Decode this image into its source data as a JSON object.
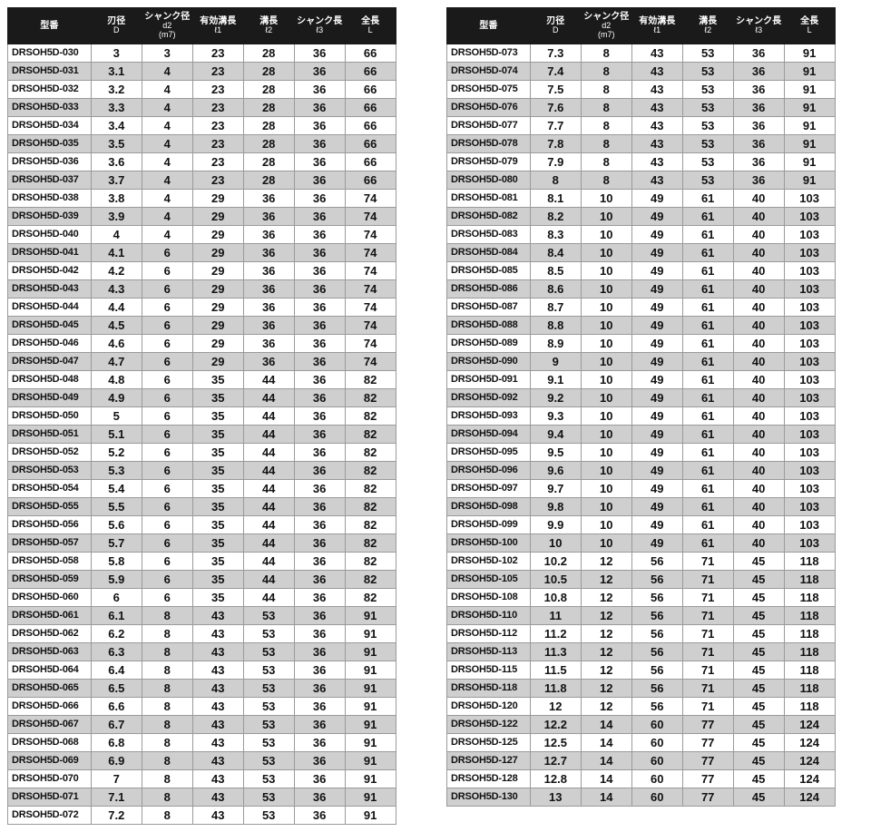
{
  "headers": {
    "model": {
      "line1": "型番",
      "line2": ""
    },
    "d": {
      "line1": "刃径",
      "line2": "D"
    },
    "d2": {
      "line1": "シャンク径",
      "line2": "d2",
      "line3": "(m7)"
    },
    "l1": {
      "line1": "有効溝長",
      "line2": "ℓ1"
    },
    "l2": {
      "line1": "溝長",
      "line2": "ℓ2"
    },
    "l3": {
      "line1": "シャンク長",
      "line2": "ℓ3"
    },
    "l": {
      "line1": "全長",
      "line2": "L"
    }
  },
  "colors": {
    "header_bg": "#1a1a1a",
    "header_fg": "#ffffff",
    "stripe_bg": "#cfcfcf",
    "border": "#9a9a9a",
    "page_bg": "#ffffff",
    "text": "#111111"
  },
  "left_rows": [
    {
      "model": "DRSOH5D-030",
      "d": "3",
      "d2": "3",
      "l1": "23",
      "l2": "28",
      "l3": "36",
      "l": "66"
    },
    {
      "model": "DRSOH5D-031",
      "d": "3.1",
      "d2": "4",
      "l1": "23",
      "l2": "28",
      "l3": "36",
      "l": "66"
    },
    {
      "model": "DRSOH5D-032",
      "d": "3.2",
      "d2": "4",
      "l1": "23",
      "l2": "28",
      "l3": "36",
      "l": "66"
    },
    {
      "model": "DRSOH5D-033",
      "d": "3.3",
      "d2": "4",
      "l1": "23",
      "l2": "28",
      "l3": "36",
      "l": "66"
    },
    {
      "model": "DRSOH5D-034",
      "d": "3.4",
      "d2": "4",
      "l1": "23",
      "l2": "28",
      "l3": "36",
      "l": "66"
    },
    {
      "model": "DRSOH5D-035",
      "d": "3.5",
      "d2": "4",
      "l1": "23",
      "l2": "28",
      "l3": "36",
      "l": "66"
    },
    {
      "model": "DRSOH5D-036",
      "d": "3.6",
      "d2": "4",
      "l1": "23",
      "l2": "28",
      "l3": "36",
      "l": "66"
    },
    {
      "model": "DRSOH5D-037",
      "d": "3.7",
      "d2": "4",
      "l1": "23",
      "l2": "28",
      "l3": "36",
      "l": "66"
    },
    {
      "model": "DRSOH5D-038",
      "d": "3.8",
      "d2": "4",
      "l1": "29",
      "l2": "36",
      "l3": "36",
      "l": "74"
    },
    {
      "model": "DRSOH5D-039",
      "d": "3.9",
      "d2": "4",
      "l1": "29",
      "l2": "36",
      "l3": "36",
      "l": "74"
    },
    {
      "model": "DRSOH5D-040",
      "d": "4",
      "d2": "4",
      "l1": "29",
      "l2": "36",
      "l3": "36",
      "l": "74"
    },
    {
      "model": "DRSOH5D-041",
      "d": "4.1",
      "d2": "6",
      "l1": "29",
      "l2": "36",
      "l3": "36",
      "l": "74"
    },
    {
      "model": "DRSOH5D-042",
      "d": "4.2",
      "d2": "6",
      "l1": "29",
      "l2": "36",
      "l3": "36",
      "l": "74"
    },
    {
      "model": "DRSOH5D-043",
      "d": "4.3",
      "d2": "6",
      "l1": "29",
      "l2": "36",
      "l3": "36",
      "l": "74"
    },
    {
      "model": "DRSOH5D-044",
      "d": "4.4",
      "d2": "6",
      "l1": "29",
      "l2": "36",
      "l3": "36",
      "l": "74"
    },
    {
      "model": "DRSOH5D-045",
      "d": "4.5",
      "d2": "6",
      "l1": "29",
      "l2": "36",
      "l3": "36",
      "l": "74"
    },
    {
      "model": "DRSOH5D-046",
      "d": "4.6",
      "d2": "6",
      "l1": "29",
      "l2": "36",
      "l3": "36",
      "l": "74"
    },
    {
      "model": "DRSOH5D-047",
      "d": "4.7",
      "d2": "6",
      "l1": "29",
      "l2": "36",
      "l3": "36",
      "l": "74"
    },
    {
      "model": "DRSOH5D-048",
      "d": "4.8",
      "d2": "6",
      "l1": "35",
      "l2": "44",
      "l3": "36",
      "l": "82"
    },
    {
      "model": "DRSOH5D-049",
      "d": "4.9",
      "d2": "6",
      "l1": "35",
      "l2": "44",
      "l3": "36",
      "l": "82"
    },
    {
      "model": "DRSOH5D-050",
      "d": "5",
      "d2": "6",
      "l1": "35",
      "l2": "44",
      "l3": "36",
      "l": "82"
    },
    {
      "model": "DRSOH5D-051",
      "d": "5.1",
      "d2": "6",
      "l1": "35",
      "l2": "44",
      "l3": "36",
      "l": "82"
    },
    {
      "model": "DRSOH5D-052",
      "d": "5.2",
      "d2": "6",
      "l1": "35",
      "l2": "44",
      "l3": "36",
      "l": "82"
    },
    {
      "model": "DRSOH5D-053",
      "d": "5.3",
      "d2": "6",
      "l1": "35",
      "l2": "44",
      "l3": "36",
      "l": "82"
    },
    {
      "model": "DRSOH5D-054",
      "d": "5.4",
      "d2": "6",
      "l1": "35",
      "l2": "44",
      "l3": "36",
      "l": "82"
    },
    {
      "model": "DRSOH5D-055",
      "d": "5.5",
      "d2": "6",
      "l1": "35",
      "l2": "44",
      "l3": "36",
      "l": "82"
    },
    {
      "model": "DRSOH5D-056",
      "d": "5.6",
      "d2": "6",
      "l1": "35",
      "l2": "44",
      "l3": "36",
      "l": "82"
    },
    {
      "model": "DRSOH5D-057",
      "d": "5.7",
      "d2": "6",
      "l1": "35",
      "l2": "44",
      "l3": "36",
      "l": "82"
    },
    {
      "model": "DRSOH5D-058",
      "d": "5.8",
      "d2": "6",
      "l1": "35",
      "l2": "44",
      "l3": "36",
      "l": "82"
    },
    {
      "model": "DRSOH5D-059",
      "d": "5.9",
      "d2": "6",
      "l1": "35",
      "l2": "44",
      "l3": "36",
      "l": "82"
    },
    {
      "model": "DRSOH5D-060",
      "d": "6",
      "d2": "6",
      "l1": "35",
      "l2": "44",
      "l3": "36",
      "l": "82"
    },
    {
      "model": "DRSOH5D-061",
      "d": "6.1",
      "d2": "8",
      "l1": "43",
      "l2": "53",
      "l3": "36",
      "l": "91"
    },
    {
      "model": "DRSOH5D-062",
      "d": "6.2",
      "d2": "8",
      "l1": "43",
      "l2": "53",
      "l3": "36",
      "l": "91"
    },
    {
      "model": "DRSOH5D-063",
      "d": "6.3",
      "d2": "8",
      "l1": "43",
      "l2": "53",
      "l3": "36",
      "l": "91"
    },
    {
      "model": "DRSOH5D-064",
      "d": "6.4",
      "d2": "8",
      "l1": "43",
      "l2": "53",
      "l3": "36",
      "l": "91"
    },
    {
      "model": "DRSOH5D-065",
      "d": "6.5",
      "d2": "8",
      "l1": "43",
      "l2": "53",
      "l3": "36",
      "l": "91"
    },
    {
      "model": "DRSOH5D-066",
      "d": "6.6",
      "d2": "8",
      "l1": "43",
      "l2": "53",
      "l3": "36",
      "l": "91"
    },
    {
      "model": "DRSOH5D-067",
      "d": "6.7",
      "d2": "8",
      "l1": "43",
      "l2": "53",
      "l3": "36",
      "l": "91"
    },
    {
      "model": "DRSOH5D-068",
      "d": "6.8",
      "d2": "8",
      "l1": "43",
      "l2": "53",
      "l3": "36",
      "l": "91"
    },
    {
      "model": "DRSOH5D-069",
      "d": "6.9",
      "d2": "8",
      "l1": "43",
      "l2": "53",
      "l3": "36",
      "l": "91"
    },
    {
      "model": "DRSOH5D-070",
      "d": "7",
      "d2": "8",
      "l1": "43",
      "l2": "53",
      "l3": "36",
      "l": "91"
    },
    {
      "model": "DRSOH5D-071",
      "d": "7.1",
      "d2": "8",
      "l1": "43",
      "l2": "53",
      "l3": "36",
      "l": "91"
    },
    {
      "model": "DRSOH5D-072",
      "d": "7.2",
      "d2": "8",
      "l1": "43",
      "l2": "53",
      "l3": "36",
      "l": "91"
    }
  ],
  "right_rows": [
    {
      "model": "DRSOH5D-073",
      "d": "7.3",
      "d2": "8",
      "l1": "43",
      "l2": "53",
      "l3": "36",
      "l": "91"
    },
    {
      "model": "DRSOH5D-074",
      "d": "7.4",
      "d2": "8",
      "l1": "43",
      "l2": "53",
      "l3": "36",
      "l": "91"
    },
    {
      "model": "DRSOH5D-075",
      "d": "7.5",
      "d2": "8",
      "l1": "43",
      "l2": "53",
      "l3": "36",
      "l": "91"
    },
    {
      "model": "DRSOH5D-076",
      "d": "7.6",
      "d2": "8",
      "l1": "43",
      "l2": "53",
      "l3": "36",
      "l": "91"
    },
    {
      "model": "DRSOH5D-077",
      "d": "7.7",
      "d2": "8",
      "l1": "43",
      "l2": "53",
      "l3": "36",
      "l": "91"
    },
    {
      "model": "DRSOH5D-078",
      "d": "7.8",
      "d2": "8",
      "l1": "43",
      "l2": "53",
      "l3": "36",
      "l": "91"
    },
    {
      "model": "DRSOH5D-079",
      "d": "7.9",
      "d2": "8",
      "l1": "43",
      "l2": "53",
      "l3": "36",
      "l": "91"
    },
    {
      "model": "DRSOH5D-080",
      "d": "8",
      "d2": "8",
      "l1": "43",
      "l2": "53",
      "l3": "36",
      "l": "91"
    },
    {
      "model": "DRSOH5D-081",
      "d": "8.1",
      "d2": "10",
      "l1": "49",
      "l2": "61",
      "l3": "40",
      "l": "103"
    },
    {
      "model": "DRSOH5D-082",
      "d": "8.2",
      "d2": "10",
      "l1": "49",
      "l2": "61",
      "l3": "40",
      "l": "103"
    },
    {
      "model": "DRSOH5D-083",
      "d": "8.3",
      "d2": "10",
      "l1": "49",
      "l2": "61",
      "l3": "40",
      "l": "103"
    },
    {
      "model": "DRSOH5D-084",
      "d": "8.4",
      "d2": "10",
      "l1": "49",
      "l2": "61",
      "l3": "40",
      "l": "103"
    },
    {
      "model": "DRSOH5D-085",
      "d": "8.5",
      "d2": "10",
      "l1": "49",
      "l2": "61",
      "l3": "40",
      "l": "103"
    },
    {
      "model": "DRSOH5D-086",
      "d": "8.6",
      "d2": "10",
      "l1": "49",
      "l2": "61",
      "l3": "40",
      "l": "103"
    },
    {
      "model": "DRSOH5D-087",
      "d": "8.7",
      "d2": "10",
      "l1": "49",
      "l2": "61",
      "l3": "40",
      "l": "103"
    },
    {
      "model": "DRSOH5D-088",
      "d": "8.8",
      "d2": "10",
      "l1": "49",
      "l2": "61",
      "l3": "40",
      "l": "103"
    },
    {
      "model": "DRSOH5D-089",
      "d": "8.9",
      "d2": "10",
      "l1": "49",
      "l2": "61",
      "l3": "40",
      "l": "103"
    },
    {
      "model": "DRSOH5D-090",
      "d": "9",
      "d2": "10",
      "l1": "49",
      "l2": "61",
      "l3": "40",
      "l": "103"
    },
    {
      "model": "DRSOH5D-091",
      "d": "9.1",
      "d2": "10",
      "l1": "49",
      "l2": "61",
      "l3": "40",
      "l": "103"
    },
    {
      "model": "DRSOH5D-092",
      "d": "9.2",
      "d2": "10",
      "l1": "49",
      "l2": "61",
      "l3": "40",
      "l": "103"
    },
    {
      "model": "DRSOH5D-093",
      "d": "9.3",
      "d2": "10",
      "l1": "49",
      "l2": "61",
      "l3": "40",
      "l": "103"
    },
    {
      "model": "DRSOH5D-094",
      "d": "9.4",
      "d2": "10",
      "l1": "49",
      "l2": "61",
      "l3": "40",
      "l": "103"
    },
    {
      "model": "DRSOH5D-095",
      "d": "9.5",
      "d2": "10",
      "l1": "49",
      "l2": "61",
      "l3": "40",
      "l": "103"
    },
    {
      "model": "DRSOH5D-096",
      "d": "9.6",
      "d2": "10",
      "l1": "49",
      "l2": "61",
      "l3": "40",
      "l": "103"
    },
    {
      "model": "DRSOH5D-097",
      "d": "9.7",
      "d2": "10",
      "l1": "49",
      "l2": "61",
      "l3": "40",
      "l": "103"
    },
    {
      "model": "DRSOH5D-098",
      "d": "9.8",
      "d2": "10",
      "l1": "49",
      "l2": "61",
      "l3": "40",
      "l": "103"
    },
    {
      "model": "DRSOH5D-099",
      "d": "9.9",
      "d2": "10",
      "l1": "49",
      "l2": "61",
      "l3": "40",
      "l": "103"
    },
    {
      "model": "DRSOH5D-100",
      "d": "10",
      "d2": "10",
      "l1": "49",
      "l2": "61",
      "l3": "40",
      "l": "103"
    },
    {
      "model": "DRSOH5D-102",
      "d": "10.2",
      "d2": "12",
      "l1": "56",
      "l2": "71",
      "l3": "45",
      "l": "118"
    },
    {
      "model": "DRSOH5D-105",
      "d": "10.5",
      "d2": "12",
      "l1": "56",
      "l2": "71",
      "l3": "45",
      "l": "118"
    },
    {
      "model": "DRSOH5D-108",
      "d": "10.8",
      "d2": "12",
      "l1": "56",
      "l2": "71",
      "l3": "45",
      "l": "118"
    },
    {
      "model": "DRSOH5D-110",
      "d": "11",
      "d2": "12",
      "l1": "56",
      "l2": "71",
      "l3": "45",
      "l": "118"
    },
    {
      "model": "DRSOH5D-112",
      "d": "11.2",
      "d2": "12",
      "l1": "56",
      "l2": "71",
      "l3": "45",
      "l": "118"
    },
    {
      "model": "DRSOH5D-113",
      "d": "11.3",
      "d2": "12",
      "l1": "56",
      "l2": "71",
      "l3": "45",
      "l": "118"
    },
    {
      "model": "DRSOH5D-115",
      "d": "11.5",
      "d2": "12",
      "l1": "56",
      "l2": "71",
      "l3": "45",
      "l": "118"
    },
    {
      "model": "DRSOH5D-118",
      "d": "11.8",
      "d2": "12",
      "l1": "56",
      "l2": "71",
      "l3": "45",
      "l": "118"
    },
    {
      "model": "DRSOH5D-120",
      "d": "12",
      "d2": "12",
      "l1": "56",
      "l2": "71",
      "l3": "45",
      "l": "118"
    },
    {
      "model": "DRSOH5D-122",
      "d": "12.2",
      "d2": "14",
      "l1": "60",
      "l2": "77",
      "l3": "45",
      "l": "124"
    },
    {
      "model": "DRSOH5D-125",
      "d": "12.5",
      "d2": "14",
      "l1": "60",
      "l2": "77",
      "l3": "45",
      "l": "124"
    },
    {
      "model": "DRSOH5D-127",
      "d": "12.7",
      "d2": "14",
      "l1": "60",
      "l2": "77",
      "l3": "45",
      "l": "124"
    },
    {
      "model": "DRSOH5D-128",
      "d": "12.8",
      "d2": "14",
      "l1": "60",
      "l2": "77",
      "l3": "45",
      "l": "124"
    },
    {
      "model": "DRSOH5D-130",
      "d": "13",
      "d2": "14",
      "l1": "60",
      "l2": "77",
      "l3": "45",
      "l": "124"
    }
  ]
}
